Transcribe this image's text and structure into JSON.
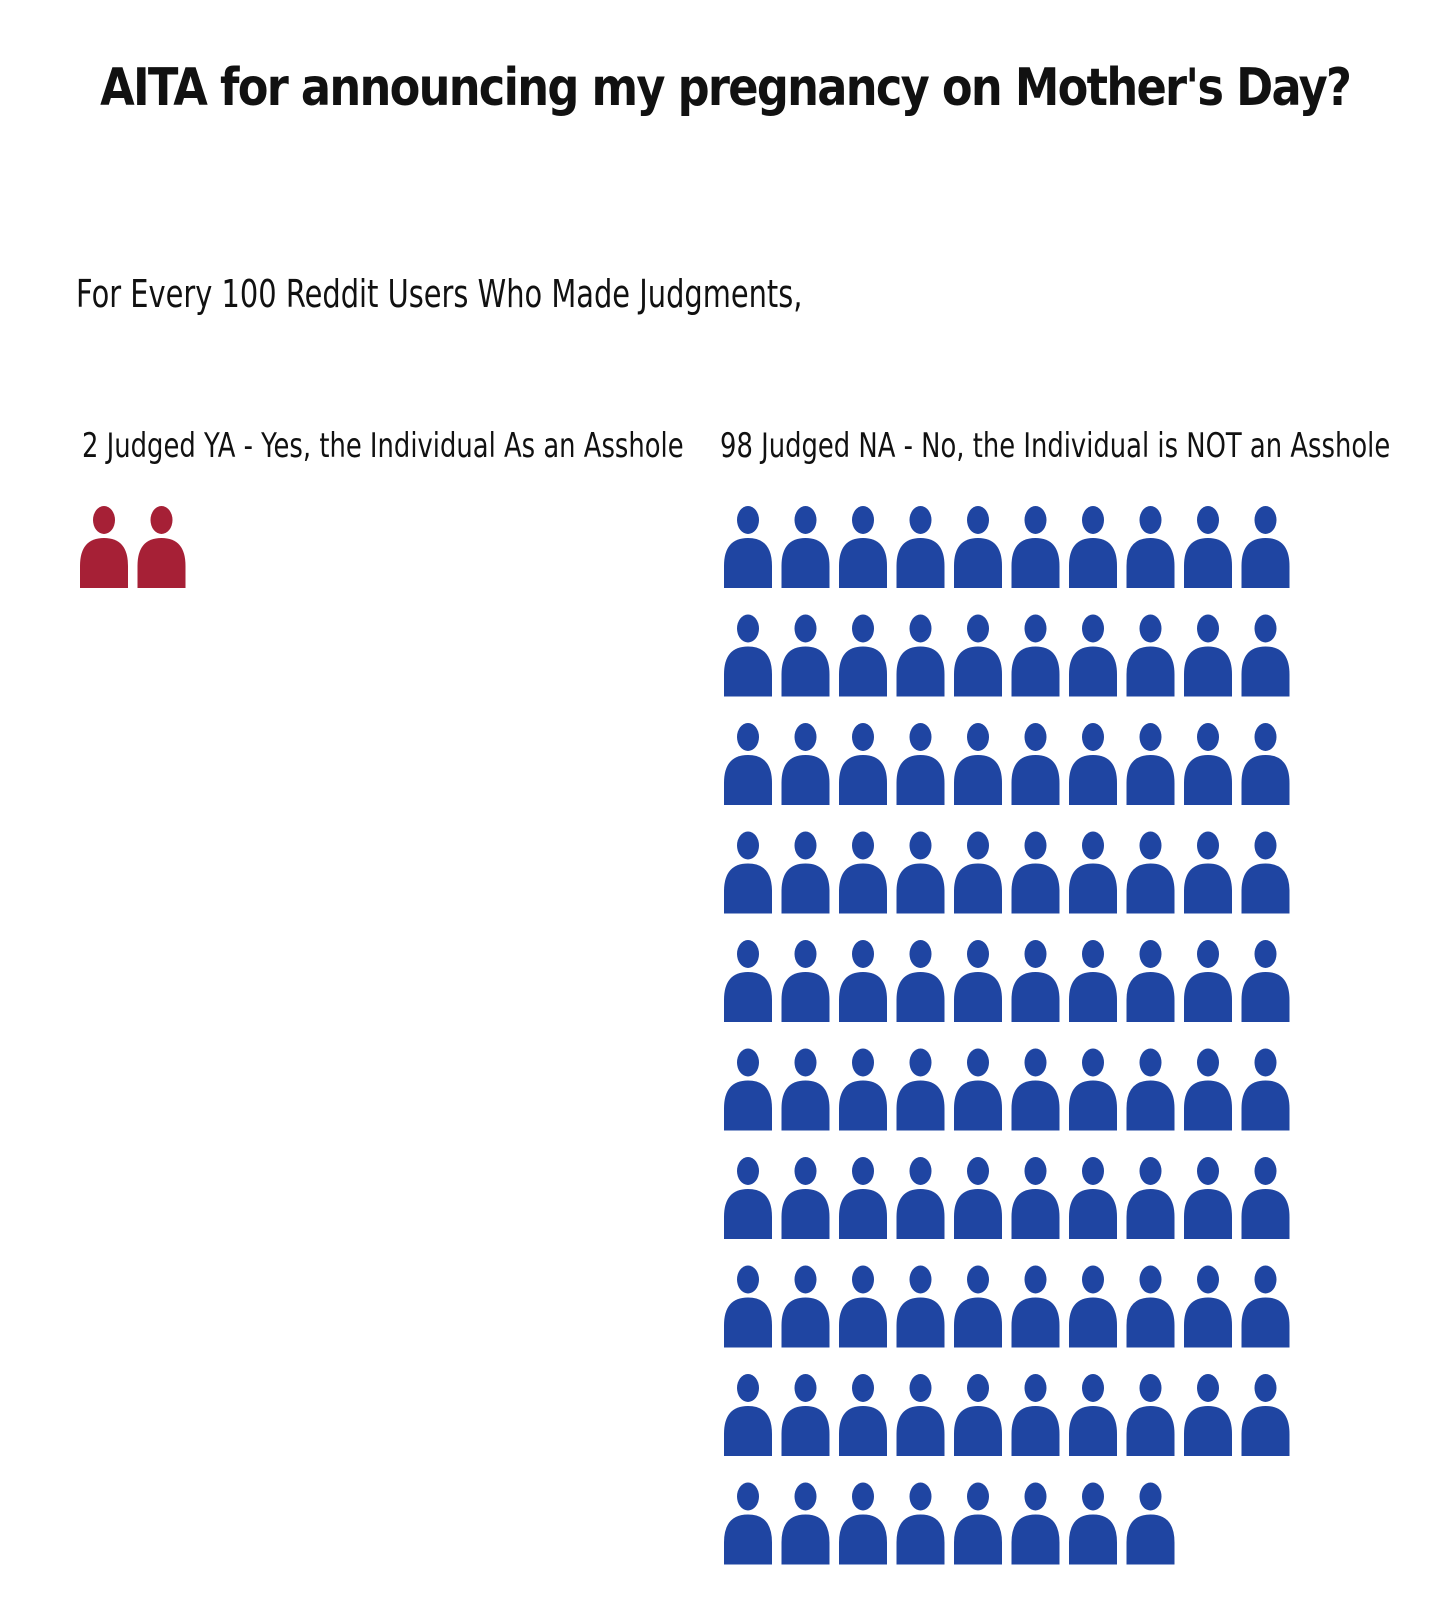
{
  "title": "AITA for announcing my pregnancy on Mother's Day?",
  "subtitle": "For Every 100 Reddit Users Who Made Judgments,",
  "colors": {
    "ya": "#a62036",
    "na": "#1f45a2"
  },
  "chart_data": {
    "type": "pictogram",
    "title": "AITA for announcing my pregnancy on Mother's Day?",
    "subtitle": "For Every 100 Reddit Users Who Made Judgments,",
    "total": 100,
    "icon": "person-icon",
    "icons_per_row": 10,
    "series": [
      {
        "key": "ya",
        "label": "2 Judged YA - Yes, the Individual As an Asshole",
        "value": 2,
        "color": "#a62036"
      },
      {
        "key": "na",
        "label": "98 Judged NA - No, the Individual is NOT an Asshole",
        "value": 98,
        "color": "#1f45a2"
      }
    ]
  }
}
